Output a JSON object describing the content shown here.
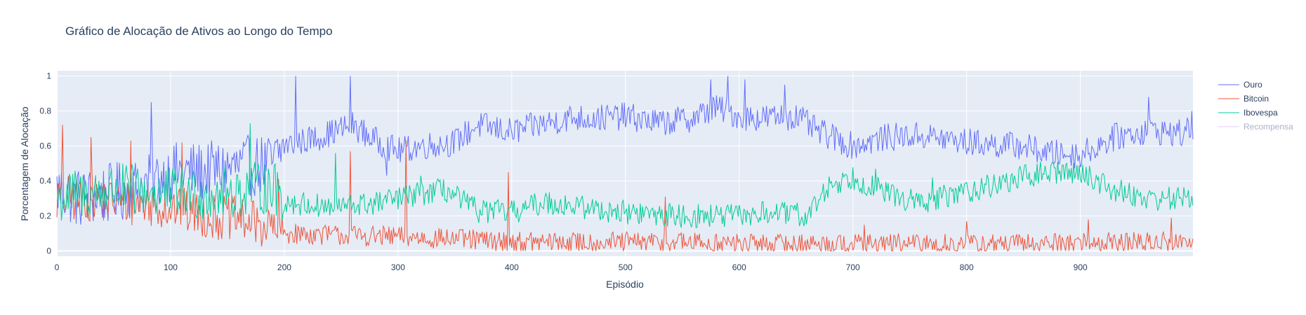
{
  "chart_data": {
    "type": "line",
    "title": "Gráfico de Alocação de Ativos ao Longo do Tempo",
    "xlabel": "Episódio",
    "ylabel": "Porcentagem de Alocação",
    "xlim": [
      0,
      999
    ],
    "ylim": [
      -0.03,
      1.03
    ],
    "xticks": [
      0,
      100,
      200,
      300,
      400,
      500,
      600,
      700,
      800,
      900
    ],
    "yticks": [
      0,
      0.2,
      0.4,
      0.6,
      0.8,
      1
    ],
    "grid": true,
    "legend_position": "top-right",
    "series": [
      {
        "name": "Ouro",
        "color": "#636efa",
        "visible": true,
        "anchors": [
          [
            0,
            0.35
          ],
          [
            20,
            0.3
          ],
          [
            50,
            0.33
          ],
          [
            80,
            0.38
          ],
          [
            100,
            0.45
          ],
          [
            130,
            0.45
          ],
          [
            160,
            0.48
          ],
          [
            190,
            0.5
          ],
          [
            200,
            0.6
          ],
          [
            230,
            0.65
          ],
          [
            260,
            0.72
          ],
          [
            280,
            0.63
          ],
          [
            300,
            0.57
          ],
          [
            320,
            0.6
          ],
          [
            350,
            0.62
          ],
          [
            370,
            0.72
          ],
          [
            400,
            0.68
          ],
          [
            430,
            0.73
          ],
          [
            450,
            0.76
          ],
          [
            480,
            0.76
          ],
          [
            500,
            0.77
          ],
          [
            530,
            0.73
          ],
          [
            560,
            0.76
          ],
          [
            580,
            0.82
          ],
          [
            600,
            0.77
          ],
          [
            620,
            0.76
          ],
          [
            650,
            0.77
          ],
          [
            670,
            0.68
          ],
          [
            700,
            0.6
          ],
          [
            730,
            0.65
          ],
          [
            760,
            0.66
          ],
          [
            790,
            0.63
          ],
          [
            820,
            0.61
          ],
          [
            850,
            0.6
          ],
          [
            870,
            0.56
          ],
          [
            900,
            0.55
          ],
          [
            930,
            0.65
          ],
          [
            960,
            0.69
          ],
          [
            990,
            0.67
          ],
          [
            999,
            0.7
          ]
        ],
        "noise": 0.08,
        "spikes": [
          [
            83,
            0.85
          ],
          [
            210,
            1.0
          ],
          [
            258,
            1.0
          ],
          [
            290,
            0.43
          ],
          [
            575,
            0.98
          ],
          [
            590,
            1.0
          ],
          [
            605,
            0.98
          ],
          [
            640,
            0.95
          ],
          [
            960,
            0.88
          ],
          [
            998,
            0.8
          ]
        ]
      },
      {
        "name": "Bitcoin",
        "color": "#ef553b",
        "visible": true,
        "anchors": [
          [
            0,
            0.3
          ],
          [
            30,
            0.3
          ],
          [
            60,
            0.28
          ],
          [
            100,
            0.25
          ],
          [
            130,
            0.2
          ],
          [
            160,
            0.18
          ],
          [
            190,
            0.13
          ],
          [
            200,
            0.1
          ],
          [
            250,
            0.09
          ],
          [
            300,
            0.08
          ],
          [
            350,
            0.07
          ],
          [
            400,
            0.05
          ],
          [
            450,
            0.05
          ],
          [
            500,
            0.05
          ],
          [
            550,
            0.05
          ],
          [
            600,
            0.04
          ],
          [
            650,
            0.04
          ],
          [
            700,
            0.04
          ],
          [
            750,
            0.04
          ],
          [
            800,
            0.04
          ],
          [
            850,
            0.04
          ],
          [
            900,
            0.05
          ],
          [
            950,
            0.05
          ],
          [
            999,
            0.05
          ]
        ],
        "noise": 0.06,
        "spikes": [
          [
            5,
            0.72
          ],
          [
            30,
            0.65
          ],
          [
            65,
            0.63
          ],
          [
            110,
            0.62
          ],
          [
            195,
            0.41
          ],
          [
            258,
            0.57
          ],
          [
            307,
            0.63
          ],
          [
            397,
            0.45
          ],
          [
            535,
            0.31
          ],
          [
            710,
            0.15
          ],
          [
            800,
            0.17
          ],
          [
            907,
            0.18
          ],
          [
            980,
            0.19
          ]
        ]
      },
      {
        "name": "Ibovespa",
        "color": "#00cc96",
        "visible": true,
        "anchors": [
          [
            0,
            0.3
          ],
          [
            50,
            0.35
          ],
          [
            100,
            0.33
          ],
          [
            150,
            0.33
          ],
          [
            190,
            0.37
          ],
          [
            200,
            0.28
          ],
          [
            240,
            0.25
          ],
          [
            280,
            0.27
          ],
          [
            300,
            0.3
          ],
          [
            340,
            0.35
          ],
          [
            370,
            0.23
          ],
          [
            400,
            0.22
          ],
          [
            430,
            0.28
          ],
          [
            450,
            0.26
          ],
          [
            500,
            0.22
          ],
          [
            550,
            0.2
          ],
          [
            600,
            0.2
          ],
          [
            630,
            0.22
          ],
          [
            660,
            0.2
          ],
          [
            680,
            0.38
          ],
          [
            700,
            0.42
          ],
          [
            730,
            0.33
          ],
          [
            760,
            0.27
          ],
          [
            790,
            0.33
          ],
          [
            820,
            0.37
          ],
          [
            850,
            0.42
          ],
          [
            870,
            0.45
          ],
          [
            900,
            0.45
          ],
          [
            930,
            0.35
          ],
          [
            960,
            0.3
          ],
          [
            999,
            0.3
          ]
        ],
        "noise": 0.07,
        "spikes": [
          [
            170,
            0.73
          ],
          [
            245,
            0.56
          ],
          [
            320,
            0.43
          ],
          [
            720,
            0.47
          ],
          [
            770,
            0.42
          ],
          [
            880,
            0.51
          ]
        ]
      },
      {
        "name": "Recompensa",
        "color": "#ab63fa",
        "visible": false,
        "anchors": [],
        "noise": 0,
        "spikes": []
      }
    ]
  }
}
